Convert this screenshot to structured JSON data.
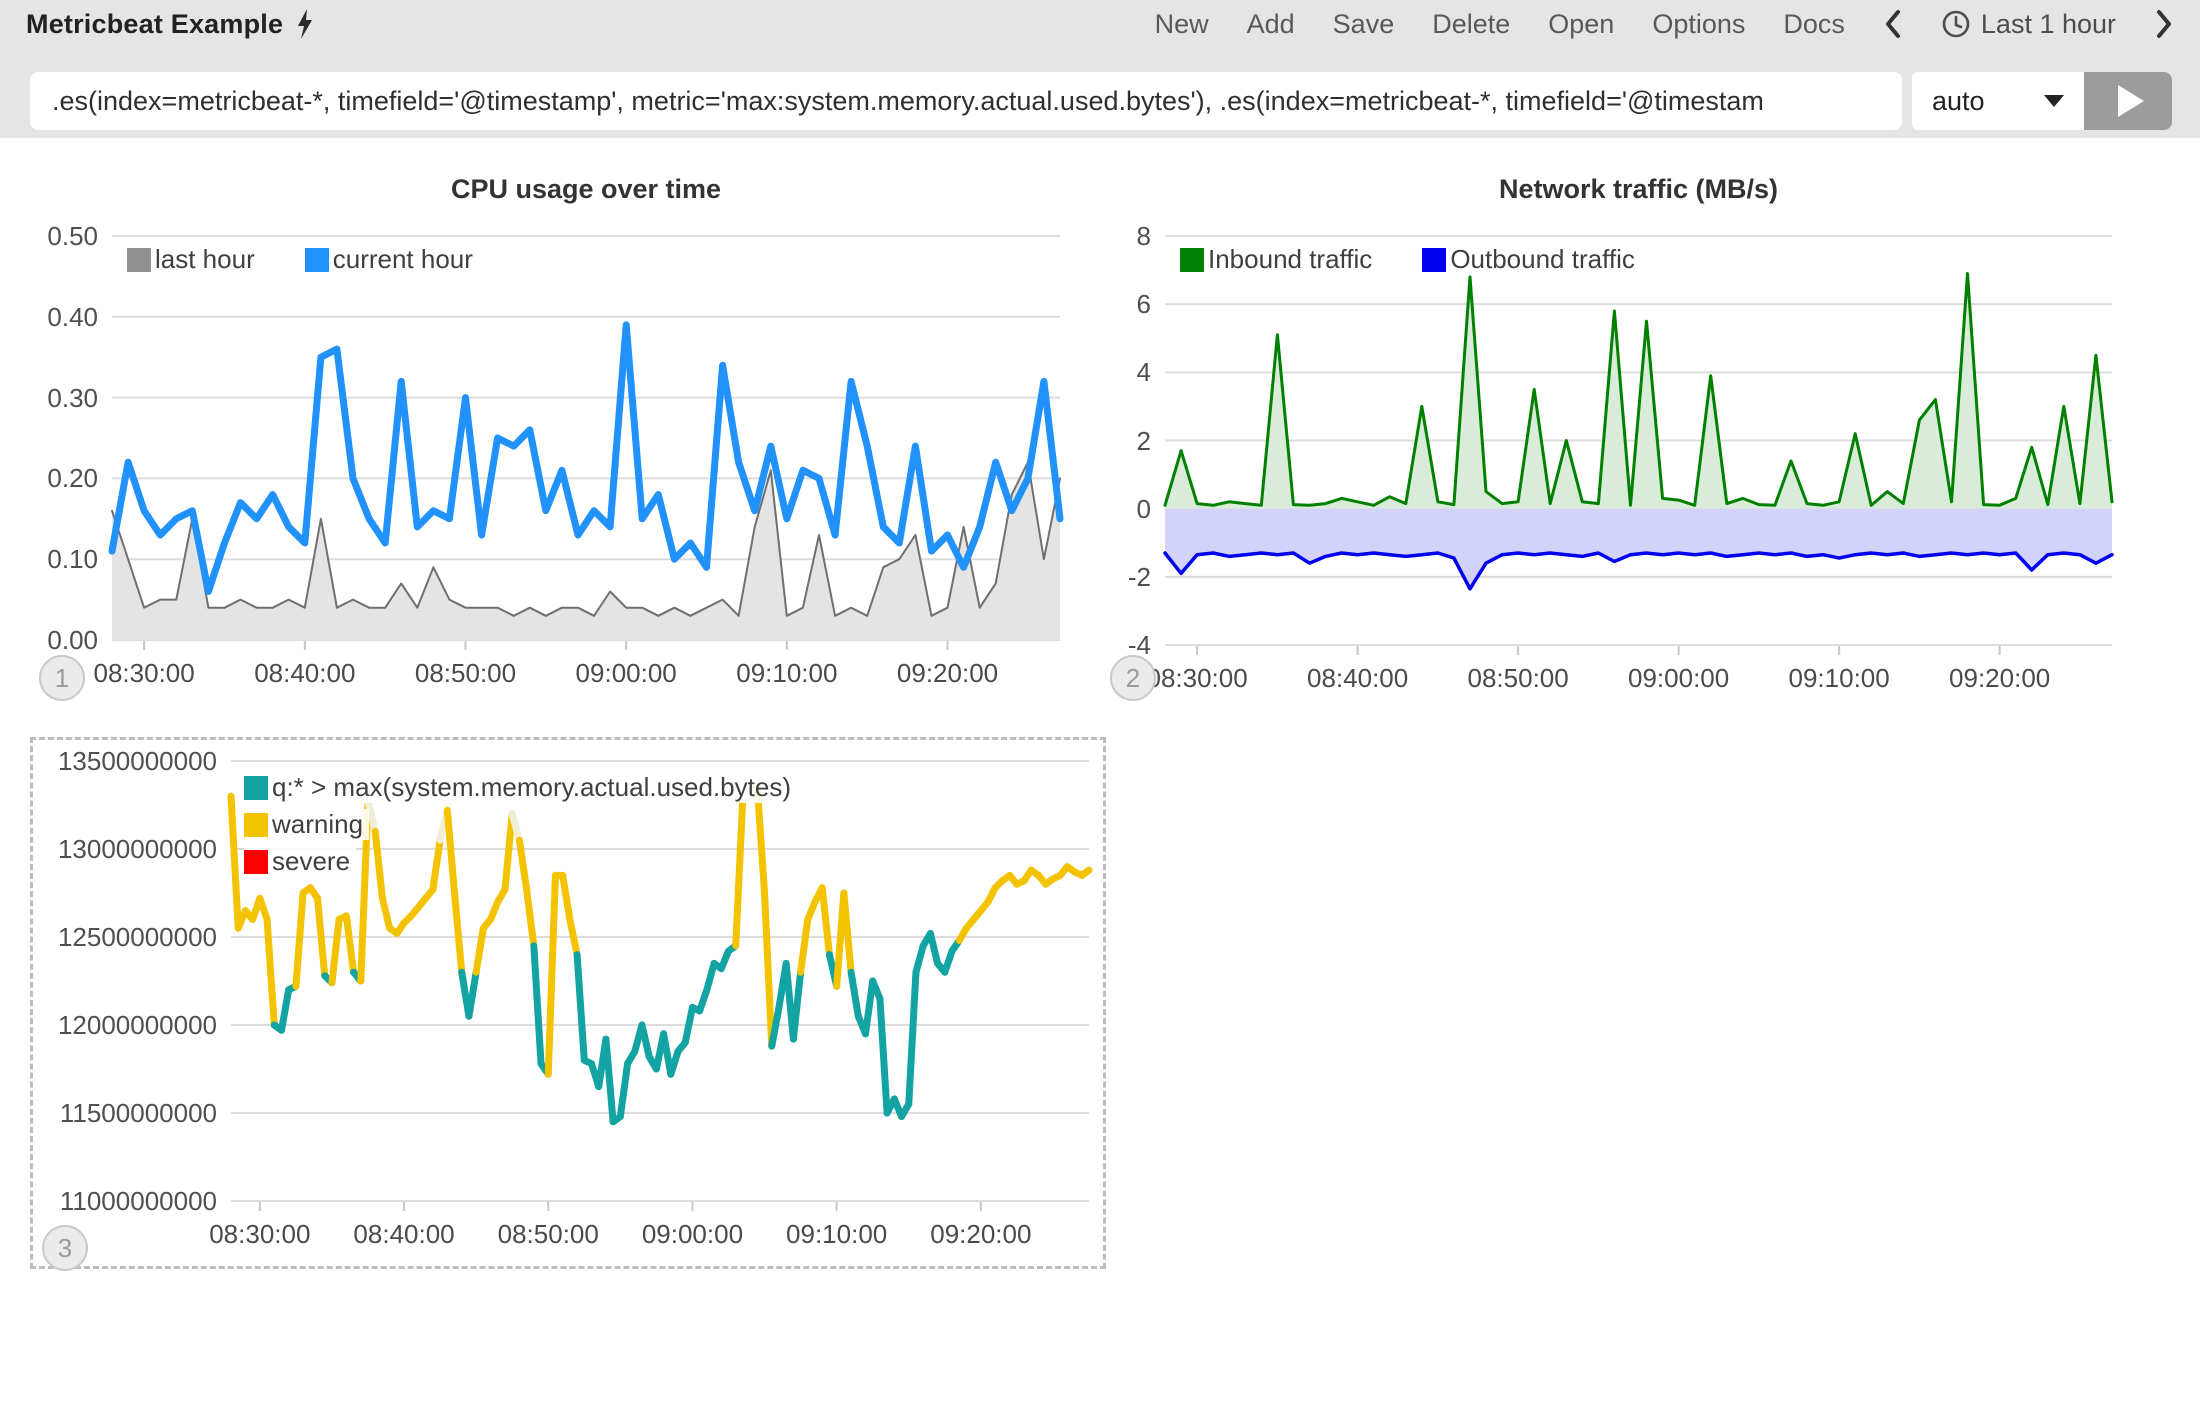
{
  "toolbar": {
    "title": "Metricbeat Example",
    "title_icon": "lightning-bolt",
    "menu": [
      "New",
      "Add",
      "Save",
      "Delete",
      "Open",
      "Options",
      "Docs"
    ],
    "time_picker": {
      "icon": "clock",
      "label": "Last 1 hour",
      "prev_icon": "chevron-left",
      "next_icon": "chevron-right"
    }
  },
  "query_bar": {
    "value": ".es(index=metricbeat-*, timefield='@timestamp', metric='max:system.memory.actual.used.bytes'), .es(index=metricbeat-*, timefield='@timestam",
    "interval": "auto",
    "run_icon": "play",
    "interval_caret_icon": "caret-down"
  },
  "colors": {
    "toolbar_bg": "#e5e5e5",
    "grid": "#dcdcdc",
    "cpu_current": "#2191fb",
    "cpu_last_fill": "#e4e4e4",
    "cpu_last_stroke": "#6f6f6f",
    "inbound": "#008000",
    "inbound_fill": "#d9ecd9",
    "outbound": "#0000f0",
    "outbound_fill": "#d2d2fa",
    "memory": "#14a3a3",
    "warning": "#f3c300",
    "severe": "#ff0000",
    "memory_fade": "#f2eed6"
  },
  "chart_data": [
    {
      "name": "cpu-usage-chart",
      "type": "line",
      "title": "CPU usage over time",
      "badge": "1",
      "ylim": [
        0,
        0.5
      ],
      "baseline": 0,
      "grid": true,
      "legend_position": "top-left",
      "legend_layout": "row",
      "y_ticks": [
        "0.50",
        "0.40",
        "0.30",
        "0.20",
        "0.10",
        "0.00"
      ],
      "x_ticks": [
        "08:30:00",
        "08:40:00",
        "08:50:00",
        "09:00:00",
        "09:10:00",
        "09:20:00"
      ],
      "x_tick_index": [
        2,
        12,
        22,
        32,
        42,
        52
      ],
      "x_points": 60,
      "series": [
        {
          "name": "last hour",
          "type": "area",
          "color": "#6f6f6f",
          "swatch": "#8f8f8f",
          "fill": "#e4e4e4",
          "width": 2,
          "values": [
            0.16,
            0.1,
            0.04,
            0.05,
            0.05,
            0.15,
            0.04,
            0.04,
            0.05,
            0.04,
            0.04,
            0.05,
            0.04,
            0.15,
            0.04,
            0.05,
            0.04,
            0.04,
            0.07,
            0.04,
            0.09,
            0.05,
            0.04,
            0.04,
            0.04,
            0.03,
            0.04,
            0.03,
            0.04,
            0.04,
            0.03,
            0.06,
            0.04,
            0.04,
            0.03,
            0.04,
            0.03,
            0.04,
            0.05,
            0.03,
            0.14,
            0.21,
            0.03,
            0.04,
            0.13,
            0.03,
            0.04,
            0.03,
            0.09,
            0.1,
            0.13,
            0.03,
            0.04,
            0.14,
            0.04,
            0.07,
            0.18,
            0.22,
            0.1,
            0.2
          ]
        },
        {
          "name": "current hour",
          "type": "line",
          "color": "#2191fb",
          "swatch": "#2191fb",
          "width": 7,
          "values": [
            0.11,
            0.22,
            0.16,
            0.13,
            0.15,
            0.16,
            0.06,
            0.12,
            0.17,
            0.15,
            0.18,
            0.14,
            0.12,
            0.35,
            0.36,
            0.2,
            0.15,
            0.12,
            0.32,
            0.14,
            0.16,
            0.15,
            0.3,
            0.13,
            0.25,
            0.24,
            0.26,
            0.16,
            0.21,
            0.13,
            0.16,
            0.14,
            0.39,
            0.15,
            0.18,
            0.1,
            0.12,
            0.09,
            0.34,
            0.22,
            0.16,
            0.24,
            0.15,
            0.21,
            0.2,
            0.13,
            0.32,
            0.24,
            0.14,
            0.12,
            0.24,
            0.11,
            0.13,
            0.09,
            0.14,
            0.22,
            0.16,
            0.2,
            0.32,
            0.15
          ]
        }
      ]
    },
    {
      "name": "network-traffic-chart",
      "type": "area",
      "title": "Network traffic (MB/s)",
      "badge": "2",
      "ylim": [
        -4,
        8
      ],
      "baseline": 0,
      "grid": true,
      "legend_position": "top-left",
      "legend_layout": "row",
      "y_ticks": [
        "8",
        "6",
        "4",
        "2",
        "0",
        "-2",
        "-4"
      ],
      "x_ticks": [
        "08:30:00",
        "08:40:00",
        "08:50:00",
        "09:00:00",
        "09:10:00",
        "09:20:00"
      ],
      "x_tick_index": [
        2,
        12,
        22,
        32,
        42,
        52
      ],
      "x_points": 60,
      "series": [
        {
          "name": "Inbound traffic",
          "type": "area",
          "color": "#008000",
          "swatch": "#008000",
          "fill": "#d9ecd9",
          "width": 3,
          "values": [
            0.1,
            1.7,
            0.15,
            0.1,
            0.2,
            0.15,
            0.1,
            5.1,
            0.12,
            0.1,
            0.15,
            0.3,
            0.2,
            0.1,
            0.35,
            0.15,
            3.0,
            0.2,
            0.12,
            6.8,
            0.5,
            0.15,
            0.2,
            3.5,
            0.15,
            2.0,
            0.2,
            0.15,
            5.8,
            0.1,
            5.5,
            0.3,
            0.25,
            0.1,
            3.9,
            0.15,
            0.3,
            0.12,
            0.1,
            1.4,
            0.15,
            0.1,
            0.2,
            2.2,
            0.1,
            0.5,
            0.15,
            2.6,
            3.2,
            0.2,
            6.9,
            0.12,
            0.1,
            0.3,
            1.8,
            0.12,
            3.0,
            0.15,
            4.5,
            0.2
          ]
        },
        {
          "name": "Outbound traffic",
          "type": "area",
          "color": "#0000f0",
          "swatch": "#0000f0",
          "fill": "#d2d2fa",
          "width": 3.5,
          "values": [
            -1.3,
            -1.9,
            -1.35,
            -1.3,
            -1.4,
            -1.35,
            -1.3,
            -1.35,
            -1.3,
            -1.6,
            -1.4,
            -1.3,
            -1.35,
            -1.3,
            -1.35,
            -1.4,
            -1.35,
            -1.3,
            -1.45,
            -2.35,
            -1.6,
            -1.35,
            -1.3,
            -1.35,
            -1.3,
            -1.35,
            -1.4,
            -1.3,
            -1.55,
            -1.35,
            -1.3,
            -1.35,
            -1.3,
            -1.35,
            -1.3,
            -1.4,
            -1.35,
            -1.3,
            -1.35,
            -1.3,
            -1.4,
            -1.35,
            -1.45,
            -1.35,
            -1.3,
            -1.35,
            -1.3,
            -1.4,
            -1.35,
            -1.3,
            -1.35,
            -1.3,
            -1.35,
            -1.3,
            -1.8,
            -1.35,
            -1.3,
            -1.35,
            -1.6,
            -1.35
          ]
        }
      ]
    },
    {
      "name": "memory-usage-chart",
      "type": "line",
      "title": "",
      "badge": "3",
      "selected": true,
      "ylim": [
        11,
        13.5
      ],
      "value_scale": 1000000000,
      "baseline": 11,
      "grid": true,
      "legend_position": "top-left",
      "legend_layout": "column",
      "y_ticks": [
        "13500000000",
        "13000000000",
        "12500000000",
        "12000000000",
        "11500000000",
        "11000000000"
      ],
      "x_ticks": [
        "08:30:00",
        "08:40:00",
        "08:50:00",
        "09:00:00",
        "09:10:00",
        "09:20:00"
      ],
      "x_tick_index": [
        4,
        24,
        44,
        64,
        84,
        104
      ],
      "x_points": 120,
      "series": [
        {
          "name": "q:* > max(system.memory.actual.used.bytes)",
          "type": "line",
          "color": "#14a3a3",
          "swatch": "#14a3a3",
          "width": 7,
          "thresholds": {
            "warning": 12.54,
            "fade": 12.95,
            "warning_color": "#f3c300",
            "fade_color": "#f2eed6"
          },
          "values": [
            13.3,
            12.55,
            12.65,
            12.6,
            12.72,
            12.6,
            12.0,
            11.97,
            12.2,
            12.22,
            12.75,
            12.78,
            12.72,
            12.28,
            12.24,
            12.6,
            12.62,
            12.3,
            12.25,
            13.27,
            13.1,
            12.72,
            12.55,
            12.52,
            12.58,
            12.62,
            12.67,
            12.72,
            12.77,
            13.05,
            13.22,
            12.75,
            12.3,
            12.05,
            12.3,
            12.55,
            12.6,
            12.7,
            12.77,
            13.2,
            13.05,
            12.77,
            12.45,
            11.78,
            11.72,
            12.85,
            12.85,
            12.6,
            12.4,
            11.8,
            11.78,
            11.65,
            11.92,
            11.45,
            11.48,
            11.78,
            11.85,
            12.0,
            11.82,
            11.75,
            11.95,
            11.72,
            11.85,
            11.9,
            12.1,
            12.08,
            12.2,
            12.35,
            12.32,
            12.42,
            12.45,
            13.3,
            13.38,
            13.35,
            12.75,
            11.88,
            12.1,
            12.35,
            11.92,
            12.3,
            12.6,
            12.7,
            12.78,
            12.4,
            12.22,
            12.75,
            12.3,
            12.05,
            11.95,
            12.25,
            12.15,
            11.5,
            11.58,
            11.48,
            11.55,
            12.3,
            12.45,
            12.52,
            12.35,
            12.3,
            12.42,
            12.48,
            12.55,
            12.6,
            12.65,
            12.7,
            12.78,
            12.82,
            12.85,
            12.8,
            12.82,
            12.88,
            12.85,
            12.8,
            12.83,
            12.85,
            12.9,
            12.87,
            12.85,
            12.88
          ]
        },
        {
          "name": "warning",
          "legend_only": true,
          "swatch": "#f3c300"
        },
        {
          "name": "severe",
          "legend_only": true,
          "swatch": "#ff0000"
        }
      ]
    }
  ]
}
